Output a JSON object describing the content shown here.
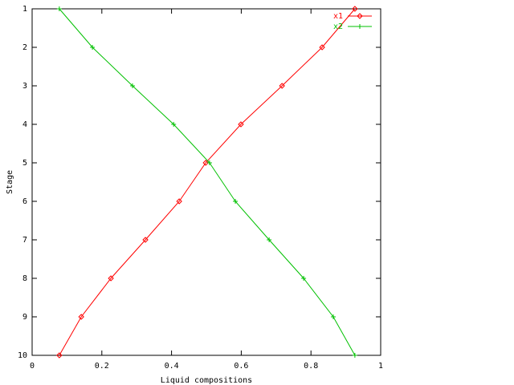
{
  "chart_data": {
    "type": "line",
    "xlabel": "Liquid compositions",
    "ylabel": "Stage",
    "y": [
      1,
      2,
      3,
      4,
      5,
      6,
      7,
      8,
      9,
      10
    ],
    "series": [
      {
        "name": "x1",
        "color": "#ff0000",
        "marker": "diamond",
        "x": [
          0.926,
          0.832,
          0.717,
          0.599,
          0.498,
          0.422,
          0.325,
          0.226,
          0.141,
          0.078
        ]
      },
      {
        "name": "x2",
        "color": "#00c000",
        "marker": "plus",
        "x": [
          0.078,
          0.173,
          0.288,
          0.406,
          0.509,
          0.583,
          0.68,
          0.779,
          0.864,
          0.926
        ]
      }
    ],
    "xlim": [
      0,
      1
    ],
    "xticks": [
      0,
      0.2,
      0.4,
      0.6,
      0.8,
      1
    ],
    "ylim": [
      10,
      1
    ],
    "yticks": [
      1,
      2,
      3,
      4,
      5,
      6,
      7,
      8,
      9,
      10
    ],
    "grid": false,
    "legend": "top-right"
  }
}
